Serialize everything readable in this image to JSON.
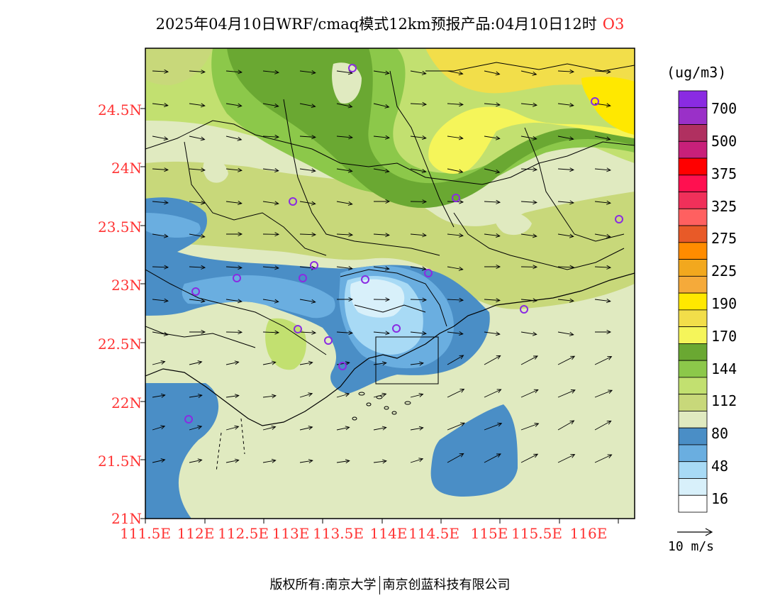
{
  "title": {
    "main": "2025年04月10日WRF/cmaq模式12km预报产品:04月10日12时",
    "species": "O3"
  },
  "map": {
    "lat_labels": [
      "24.5N",
      "24N",
      "23.5N",
      "23N",
      "22.5N",
      "22N",
      "21.5N",
      "21N"
    ],
    "lon_labels": [
      "111.5E",
      "112E",
      "112.5E",
      "113E",
      "113.5E",
      "114E",
      "114.5E",
      "115E",
      "115.5E",
      "116E"
    ]
  },
  "legend": {
    "units": "(ug/m3)",
    "colors": [
      "#8a2be2",
      "#9a30c8",
      "#b03060",
      "#c8207a",
      "#ff0000",
      "#ff1050",
      "#f0305a",
      "#ff6060",
      "#e85a28",
      "#ff8c00",
      "#f2a81e",
      "#f5aa3a",
      "#ffe800",
      "#f2de4a",
      "#f5f55a",
      "#6aa832",
      "#8cc84a",
      "#c2e070",
      "#c8d87a",
      "#e0eac0",
      "#4a8ec6",
      "#6aaee0",
      "#a8daf5",
      "#d8f0fa",
      "#ffffff"
    ],
    "labels": [
      "700",
      "500",
      "375",
      "325",
      "275",
      "225",
      "190",
      "170",
      "144",
      "112",
      "80",
      "48",
      "16"
    ]
  },
  "wind_reference": {
    "label": "10 m/s"
  },
  "footer": {
    "left": "版权所有:南京大学",
    "right": "南京创蓝科技有限公司"
  }
}
